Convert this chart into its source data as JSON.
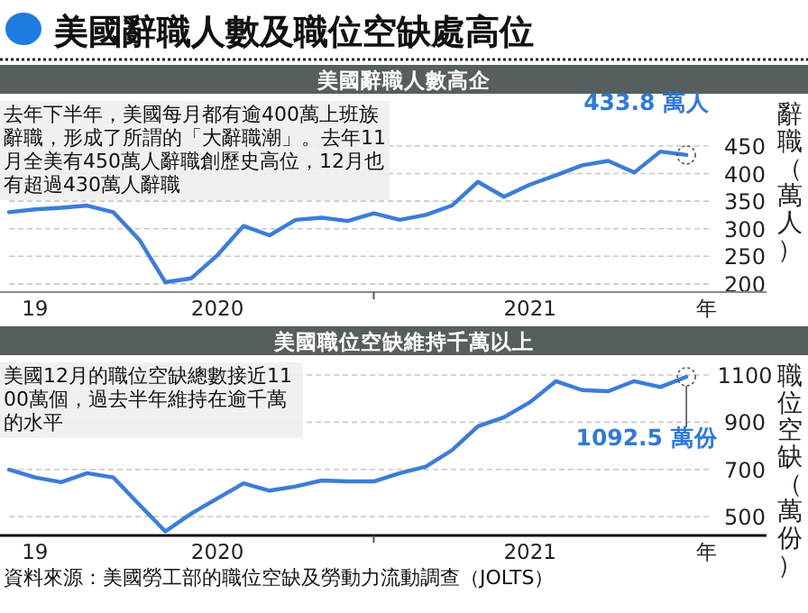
{
  "chart_data": [
    {
      "type": "line",
      "title": "美國辭職人數及職位空缺處高位",
      "subtitle": "美國辭職人數高企",
      "xlabel": "年",
      "ylabel": "辭職（萬人）",
      "x": [
        "2019-10",
        "2019-11",
        "2019-12",
        "2020-01",
        "2020-02",
        "2020-03",
        "2020-04",
        "2020-05",
        "2020-06",
        "2020-07",
        "2020-08",
        "2020-09",
        "2020-10",
        "2020-11",
        "2020-12",
        "2021-01",
        "2021-02",
        "2021-03",
        "2021-04",
        "2021-05",
        "2021-06",
        "2021-07",
        "2021-08",
        "2021-09",
        "2021-10",
        "2021-11",
        "2021-12"
      ],
      "series": [
        {
          "color": "#3b7dd8",
          "values": [
            330,
            335,
            338,
            342,
            330,
            280,
            203,
            210,
            252,
            305,
            288,
            316,
            320,
            314,
            328,
            316,
            325,
            342,
            385,
            358,
            380,
            397,
            415,
            423,
            402,
            440,
            433.8
          ]
        }
      ],
      "xlim": [
        "2019-10",
        "2022-01"
      ],
      "ylim": [
        185,
        450
      ],
      "yticks": [
        200,
        250,
        300,
        350,
        400,
        450
      ],
      "xticks": [
        {
          "value": "2019-11",
          "label": "19"
        },
        {
          "value": "2020-06",
          "label": "2020"
        },
        {
          "value": "2020-12",
          "label": null
        },
        {
          "value": "2021-06",
          "label": "2021"
        }
      ],
      "grid": "y",
      "marker": "none",
      "line_style": "solid",
      "annotations": [
        "去年下半年，美國每月都有逾400萬上班族辭職，形成了所謂的「大辭職潮」。去年11月全美有450萬人辭職創歷史高位，12月也有超過430萬人辭職",
        {
          "text": "433.8 萬人",
          "x": "2021-12",
          "y": 433.8
        }
      ]
    },
    {
      "type": "line",
      "title": "美國職位空缺維持千萬以上",
      "xlabel": "年",
      "ylabel": "職位空缺（萬份）",
      "x": [
        "2019-10",
        "2019-11",
        "2019-12",
        "2020-01",
        "2020-02",
        "2020-03",
        "2020-04",
        "2020-05",
        "2020-06",
        "2020-07",
        "2020-08",
        "2020-09",
        "2020-10",
        "2020-11",
        "2020-12",
        "2021-01",
        "2021-02",
        "2021-03",
        "2021-04",
        "2021-05",
        "2021-06",
        "2021-07",
        "2021-08",
        "2021-09",
        "2021-10",
        "2021-11",
        "2021-12"
      ],
      "series": [
        {
          "color": "#3b7dd8",
          "values": [
            699,
            666,
            646,
            684,
            666,
            551,
            437,
            513,
            577,
            641,
            610,
            628,
            653,
            649,
            649,
            684,
            712,
            781,
            883,
            921,
            985,
            1074,
            1036,
            1031,
            1074,
            1049,
            1092.5
          ]
        }
      ],
      "xlim": [
        "2019-10",
        "2022-01"
      ],
      "ylim": [
        420,
        1100
      ],
      "yticks": [
        500,
        700,
        900,
        1100
      ],
      "xticks": [
        {
          "value": "2019-11",
          "label": "19"
        },
        {
          "value": "2020-06",
          "label": "2020"
        },
        {
          "value": "2020-12",
          "label": null
        },
        {
          "value": "2021-06",
          "label": "2021"
        }
      ],
      "grid": "y",
      "marker": "none",
      "line_style": "solid",
      "annotations": [
        "美國12月的職位空缺總數接近1100萬個，過去半年維持在逾千萬的水平",
        {
          "text": "1092.5 萬份",
          "x": "2021-12",
          "y": 1092.5
        },
        "資料來源：美國勞工部的職位空缺及勞動力流動調查（JOLTS）"
      ]
    }
  ]
}
